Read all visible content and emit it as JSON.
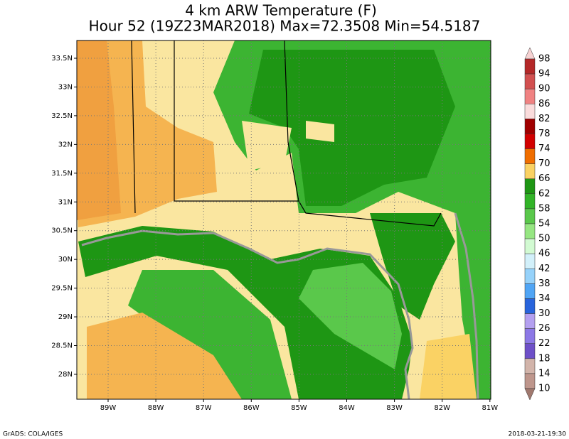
{
  "title": {
    "line1": "4 km ARW Temperature (F)",
    "line2": "Hour 52 (19Z23MAR2018) Max=72.3508 Min=54.5187"
  },
  "lat_labels": [
    "33.5N",
    "33N",
    "32.5N",
    "32N",
    "31.5N",
    "31N",
    "30.5N",
    "30N",
    "29.5N",
    "29N",
    "28.5N",
    "28N"
  ],
  "lon_labels": [
    "89W",
    "88W",
    "87W",
    "86W",
    "85W",
    "84W",
    "83W",
    "82W",
    "81W"
  ],
  "colorbar": {
    "labels": [
      98,
      94,
      90,
      86,
      82,
      78,
      74,
      70,
      66,
      62,
      58,
      54,
      50,
      46,
      42,
      38,
      34,
      30,
      26,
      22,
      18,
      14,
      10
    ],
    "colors": [
      "#f6d2d2",
      "#b42828",
      "#d25050",
      "#f08282",
      "#fadcdc",
      "#a00000",
      "#d20000",
      "#f06e00",
      "#fad264",
      "#1e9614",
      "#32b428",
      "#5ac84b",
      "#96e682",
      "#d2fad2",
      "#d2f0fa",
      "#96d2fa",
      "#50a5f5",
      "#2864dc",
      "#b4a0f0",
      "#8c78e6",
      "#6e50c8",
      "#d2b4aa",
      "#be968c",
      "#a0786e"
    ]
  },
  "footer": {
    "left": "GrADS: COLA/IGES",
    "right": "2018-03-21-19:30"
  }
}
